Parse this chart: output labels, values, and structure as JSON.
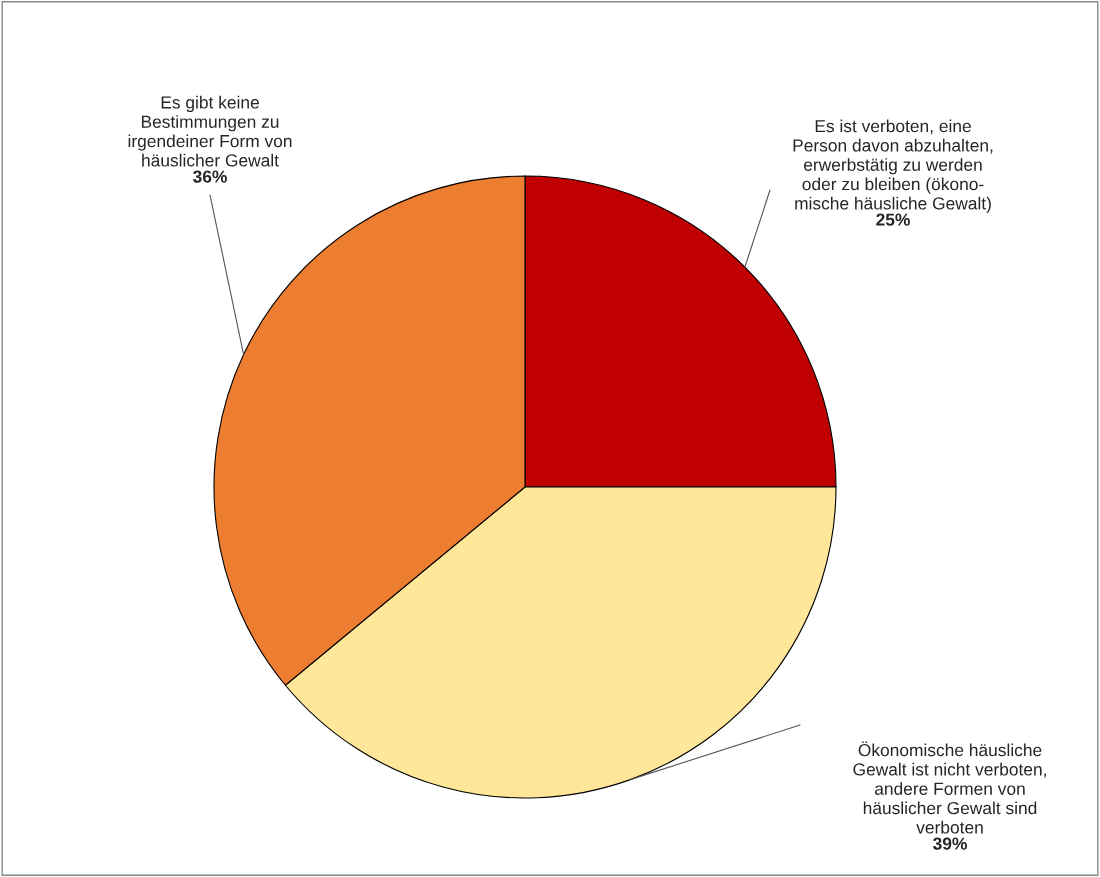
{
  "chart_data": {
    "type": "pie",
    "categories": [
      "Es ist verboten, eine\nPerson davon abzuhalten,\nerwerbstätig zu werden\noder zu bleiben (ökono-\nmische häusliche Gewalt)",
      "Ökonomische häusliche\nGewalt ist nicht verboten,\nandere Formen von\nhäuslicher Gewalt sind\nverboten",
      "Es gibt keine\nBestimmungen zu\nirgendeiner Form von\nhäuslicher Gewalt"
    ],
    "values": [
      25,
      39,
      36
    ],
    "value_labels": [
      "25%",
      "39%",
      "36%"
    ],
    "colors": [
      "#c00000",
      "#ffe699",
      "#ed7d31"
    ]
  }
}
